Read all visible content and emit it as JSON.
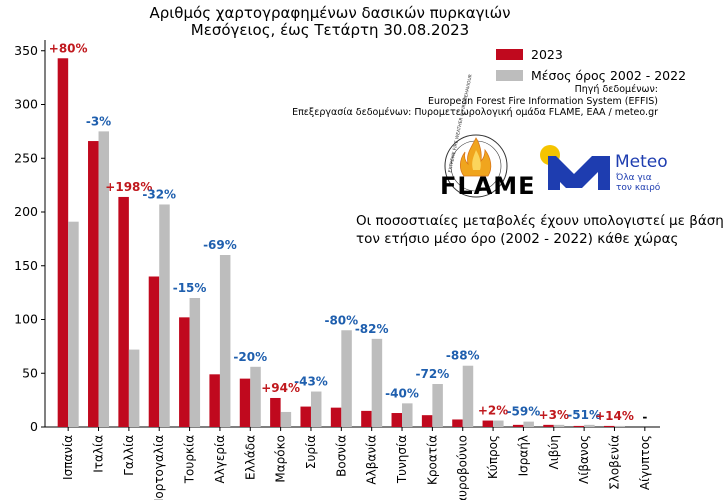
{
  "header": {
    "title_line1": "Αριθμός χαρτογραφημένων δασικών πυρκαγιών",
    "title_line2": "Μεσόγειος, έως Τετάρτη 30.08.2023"
  },
  "legend": {
    "items": [
      {
        "label": "2023",
        "color": "#c0091e"
      },
      {
        "label": "Μέσος όρος 2002 - 2022",
        "color": "#bdbdbd"
      }
    ]
  },
  "source": {
    "line1": "Πηγή δεδομένων:",
    "line2": "European Forest Fire Information System (EFFIS)",
    "line3": "Επεξεργασία δεδομένων: Πυρομετεωρολογική ομάδα FLAME, ΕΑΑ / meteo.gr"
  },
  "logos": {
    "flame_word": "FLAME",
    "flame_ring_text": "EXTREME FIRE WEATHER & FIRE BEHAVIOUR",
    "meteo_word": "Meteo",
    "meteo_tag_line1": "Όλα για",
    "meteo_tag_line2": "τον καιρό"
  },
  "note": {
    "line1": "Οι ποσοστιαίες μεταβολές έχουν υπολογιστεί με βάση",
    "line2": "τον ετήσιο μέσο όρο (2002 - 2022) κάθε χώρας"
  },
  "chart_data": {
    "type": "bar",
    "title": "Αριθμός χαρτογραφημένων δασικών πυρκαγιών",
    "subtitle": "Μεσόγειος, έως Τετάρτη 30.08.2023",
    "categories": [
      "Ισπανία",
      "Ιταλία",
      "Γαλλία",
      "Πορτογαλία",
      "Τουρκία",
      "Αλγερία",
      "Ελλάδα",
      "Μαρόκο",
      "Συρία",
      "Βοσνία",
      "Αλβανία",
      "Τυνησία",
      "Κροατία",
      "Μαυροβούνιο",
      "Κύπρος",
      "Ισραήλ",
      "Λιβύη",
      "Λίβανος",
      "Σλοβενία",
      "Αίγυπτος"
    ],
    "series": [
      {
        "name": "2023",
        "color": "#c0091e",
        "values": [
          343,
          266,
          214,
          140,
          102,
          49,
          45,
          27,
          19,
          18,
          15,
          13,
          11,
          7,
          6,
          2,
          2,
          1,
          1,
          0
        ]
      },
      {
        "name": "Μέσος όρος 2002 - 2022",
        "color": "#bdbdbd",
        "values": [
          191,
          275,
          72,
          207,
          120,
          160,
          56,
          14,
          33,
          90,
          82,
          22,
          40,
          57,
          6,
          5,
          2,
          2,
          1,
          0
        ]
      }
    ],
    "annotations": [
      {
        "text": "+80%",
        "color": "#c0191e"
      },
      {
        "text": "-3%",
        "color": "#1f5fae"
      },
      {
        "text": "+198%",
        "color": "#c0191e"
      },
      {
        "text": "-32%",
        "color": "#1f5fae"
      },
      {
        "text": "-15%",
        "color": "#1f5fae"
      },
      {
        "text": "-69%",
        "color": "#1f5fae"
      },
      {
        "text": "-20%",
        "color": "#1f5fae"
      },
      {
        "text": "+94%",
        "color": "#c0191e"
      },
      {
        "text": "-43%",
        "color": "#1f5fae"
      },
      {
        "text": "-80%",
        "color": "#1f5fae"
      },
      {
        "text": "-82%",
        "color": "#1f5fae"
      },
      {
        "text": "-40%",
        "color": "#1f5fae"
      },
      {
        "text": "-72%",
        "color": "#1f5fae"
      },
      {
        "text": "-88%",
        "color": "#1f5fae"
      },
      {
        "text": "+2%",
        "color": "#c0191e"
      },
      {
        "text": "-59%",
        "color": "#1f5fae"
      },
      {
        "text": "+3%",
        "color": "#c0191e"
      },
      {
        "text": "-51%",
        "color": "#1f5fae"
      },
      {
        "text": "+14%",
        "color": "#c0191e"
      },
      {
        "text": "-",
        "color": "#000000"
      }
    ],
    "ylim": [
      0,
      360
    ],
    "yticks": [
      0,
      50,
      100,
      150,
      200,
      250,
      300,
      350
    ],
    "xlabel": "",
    "ylabel": "",
    "grid": false,
    "legend_position": "top-right"
  }
}
